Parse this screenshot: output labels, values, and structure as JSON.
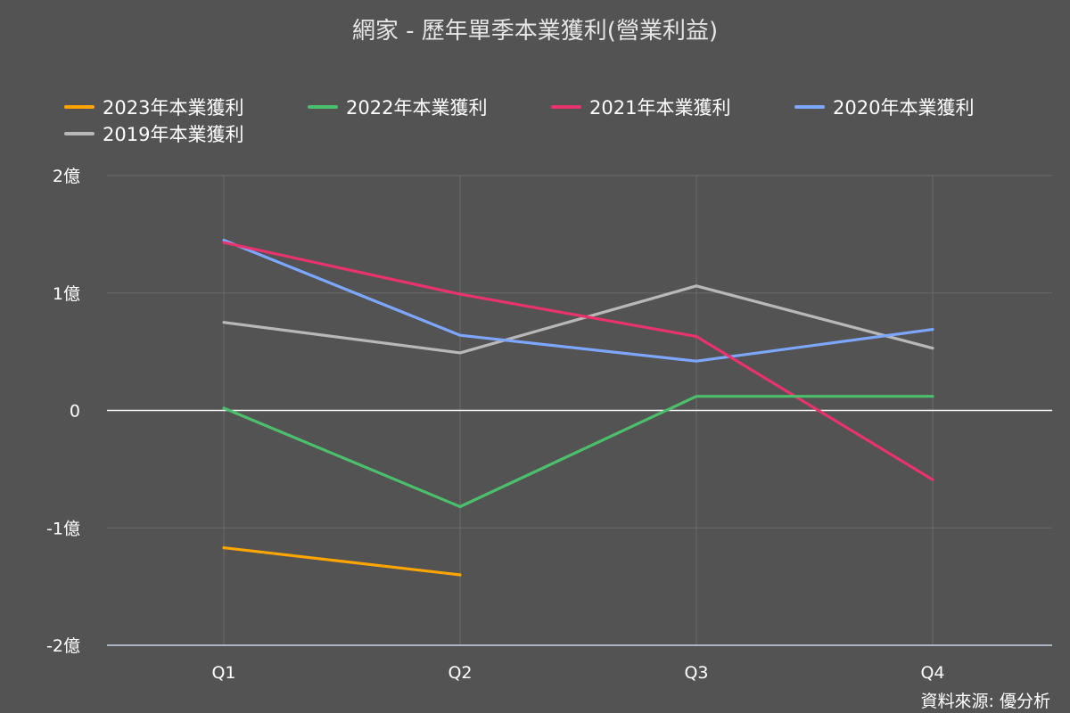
{
  "chart_data": {
    "type": "line",
    "title": "網家 - 歷年單季本業獲利(營業利益)",
    "categories": [
      "Q1",
      "Q2",
      "Q3",
      "Q4"
    ],
    "y_ticks": [
      {
        "value": 2,
        "label": "2億"
      },
      {
        "value": 1,
        "label": "1億"
      },
      {
        "value": 0,
        "label": "0"
      },
      {
        "value": -1,
        "label": "-1億"
      },
      {
        "value": -2,
        "label": "-2億"
      }
    ],
    "ylim": [
      -2,
      2
    ],
    "y_unit": "億",
    "grid": true,
    "legend_position": "top",
    "series": [
      {
        "name": "2023年本業獲利",
        "color": "#ffa500",
        "values": [
          -1.17,
          -1.4,
          null,
          null
        ]
      },
      {
        "name": "2022年本業獲利",
        "color": "#4bbf6b",
        "values": [
          0.02,
          -0.82,
          0.12,
          0.12
        ]
      },
      {
        "name": "2021年本業獲利",
        "color": "#e8336d",
        "values": [
          1.43,
          0.99,
          0.63,
          -0.59
        ]
      },
      {
        "name": "2020年本業獲利",
        "color": "#7da7ff",
        "values": [
          1.45,
          0.64,
          0.42,
          0.69
        ]
      },
      {
        "name": "2019年本業獲利",
        "color": "#b8b8b8",
        "values": [
          0.75,
          0.49,
          1.06,
          0.53
        ]
      }
    ],
    "source": "資料來源: 優分析"
  }
}
